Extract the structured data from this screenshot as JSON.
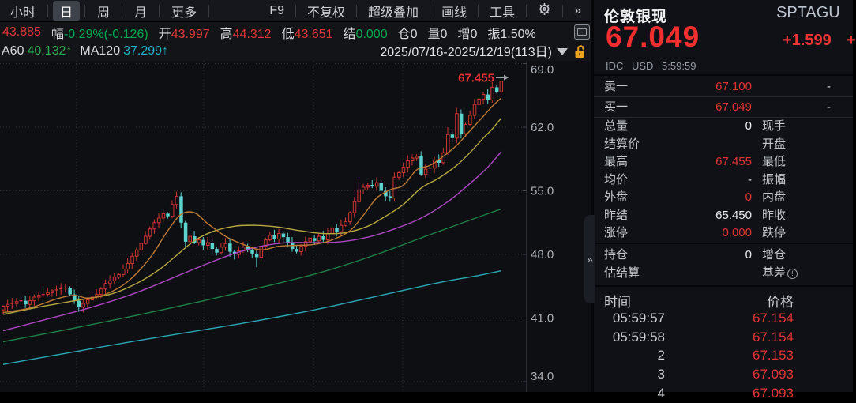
{
  "toolbar": {
    "tabs": [
      {
        "label": "小时",
        "selected": false
      },
      {
        "label": "日",
        "selected": true
      },
      {
        "label": "周",
        "selected": false
      },
      {
        "label": "月",
        "selected": false
      },
      {
        "label": "更多",
        "selected": false
      }
    ],
    "right_items": [
      "F9",
      "不复权",
      "超级叠加",
      "画线",
      "工具"
    ],
    "gear_icon": "gear",
    "overflow_icon": "»"
  },
  "quote_bar": {
    "items": [
      {
        "label": "",
        "value": "43.885",
        "color": "red"
      },
      {
        "label": "幅",
        "value": "-0.29%(-0.126)",
        "color": "green"
      },
      {
        "label": "开",
        "value": "43.997",
        "color": "red"
      },
      {
        "label": "高",
        "value": "44.312",
        "color": "red"
      },
      {
        "label": "低",
        "value": "43.651",
        "color": "red"
      },
      {
        "label": "结",
        "value": "0.000",
        "color": "green"
      },
      {
        "label": "仓",
        "value": "0",
        "color": "white"
      },
      {
        "label": "量",
        "value": "0",
        "color": "white"
      },
      {
        "label": "增",
        "value": "0",
        "color": "white"
      },
      {
        "label": "振",
        "value": "1.50%",
        "color": "white"
      }
    ]
  },
  "ma_bar": {
    "legend": [
      {
        "label": "A60",
        "value": "40.132↑",
        "color": "#2eac4e"
      },
      {
        "label": "MA120",
        "value": "37.299↑",
        "color": "#1fb3c9"
      }
    ],
    "date_range": "2025/07/16-2025/12/19(113日)"
  },
  "chart_data": {
    "type": "candlestick",
    "symbol": "伦敦银现",
    "period": "日",
    "bars_count": 113,
    "date_range": "2025/07/16-2025/12/19",
    "y_ticks": [
      69.0,
      62.0,
      55.0,
      48.0,
      41.0,
      34.0
    ],
    "y_range": [
      33.5,
      70.2
    ],
    "grid_vx": [
      97,
      258,
      397,
      510
    ],
    "annotation": {
      "text": "67.455",
      "value": 67.455
    },
    "first_open": 41.9,
    "closes": [
      42.3,
      42.5,
      42.6,
      42.8,
      42.9,
      42.5,
      42.9,
      43.3,
      43.5,
      43.6,
      43.8,
      44.0,
      44.1,
      44.2,
      44.3,
      43.6,
      42.9,
      42.2,
      42.6,
      43.0,
      43.3,
      43.6,
      44.2,
      44.8,
      45.1,
      45.5,
      45.8,
      46.4,
      47.0,
      47.8,
      48.5,
      49.2,
      50.0,
      50.8,
      51.5,
      52.0,
      52.5,
      52.2,
      53.5,
      54.4,
      51.5,
      49.4,
      50.0,
      49.3,
      49.6,
      49.0,
      49.3,
      48.6,
      48.2,
      48.8,
      49.2,
      48.3,
      48.0,
      48.4,
      48.8,
      48.5,
      48.1,
      47.7,
      48.9,
      49.6,
      50.1,
      49.7,
      50.3,
      49.9,
      49.3,
      48.6,
      48.3,
      48.9,
      49.4,
      49.8,
      49.5,
      50.0,
      49.6,
      50.3,
      50.9,
      50.5,
      51.2,
      51.6,
      52.6,
      53.8,
      55.1,
      55.4,
      55.6,
      55.5,
      55.9,
      55.0,
      54.4,
      54.2,
      56.5,
      57.0,
      57.6,
      58.3,
      58.6,
      58.8,
      56.8,
      57.4,
      57.5,
      58.4,
      58.1,
      59.2,
      61.2,
      60.8,
      63.5,
      61.3,
      62.3,
      63.3,
      64.5,
      65.1,
      65.6,
      65.0,
      66.4,
      65.9,
      67.049
    ],
    "wick_overrides": {
      "39": {
        "high": 54.9
      },
      "57": {
        "low": 46.6
      },
      "80": {
        "high": 56.3
      },
      "88": {
        "low": 53.8
      },
      "100": {
        "high": 62.0
      },
      "112": {
        "high": 67.455
      }
    },
    "colors": {
      "up": "#d23531",
      "down": "#5bd4d0",
      "grid": "#3b3f46",
      "axis": "#41454c",
      "tick_text": "#aab0b6",
      "annotation": "#e83030"
    },
    "ma_lines": [
      {
        "name": "ma120",
        "color": "#2aa8b4",
        "points": [
          [
            0,
            35.9
          ],
          [
            15,
            37.2
          ],
          [
            30,
            38.5
          ],
          [
            45,
            39.7
          ],
          [
            56,
            40.6
          ],
          [
            70,
            41.9
          ],
          [
            85,
            43.5
          ],
          [
            98,
            44.9
          ],
          [
            106,
            45.6
          ],
          [
            112,
            46.2
          ]
        ]
      },
      {
        "name": "ma60",
        "color": "#1f8048",
        "points": [
          [
            0,
            38.4
          ],
          [
            15,
            39.8
          ],
          [
            30,
            41.3
          ],
          [
            45,
            42.9
          ],
          [
            60,
            44.6
          ],
          [
            72,
            46.1
          ],
          [
            84,
            48.0
          ],
          [
            95,
            50.0
          ],
          [
            104,
            51.6
          ],
          [
            112,
            53.0
          ]
        ]
      },
      {
        "name": "ma40",
        "color": "#ab46c0",
        "points": [
          [
            0,
            39.6
          ],
          [
            10,
            40.9
          ],
          [
            20,
            42.2
          ],
          [
            30,
            43.8
          ],
          [
            40,
            45.8
          ],
          [
            46,
            47.0
          ],
          [
            52,
            48.1
          ],
          [
            58,
            48.9
          ],
          [
            64,
            49.3
          ],
          [
            70,
            49.3
          ],
          [
            76,
            49.4
          ],
          [
            82,
            49.9
          ],
          [
            88,
            50.8
          ],
          [
            94,
            52.0
          ],
          [
            100,
            53.8
          ],
          [
            105,
            55.8
          ],
          [
            109,
            57.6
          ],
          [
            112,
            59.3
          ]
        ]
      },
      {
        "name": "ma20",
        "color": "#b8a83e",
        "points": [
          [
            0,
            41.4
          ],
          [
            8,
            42.2
          ],
          [
            16,
            42.9
          ],
          [
            24,
            43.6
          ],
          [
            30,
            44.8
          ],
          [
            35,
            46.3
          ],
          [
            39,
            47.9
          ],
          [
            43,
            49.5
          ],
          [
            47,
            50.5
          ],
          [
            52,
            51.1
          ],
          [
            57,
            51.2
          ],
          [
            62,
            51.0
          ],
          [
            67,
            50.6
          ],
          [
            72,
            50.3
          ],
          [
            77,
            50.4
          ],
          [
            82,
            51.1
          ],
          [
            86,
            52.2
          ],
          [
            90,
            53.5
          ],
          [
            94,
            55.3
          ],
          [
            98,
            56.4
          ],
          [
            102,
            57.8
          ],
          [
            105,
            59.2
          ],
          [
            108,
            60.8
          ],
          [
            110,
            61.8
          ],
          [
            112,
            63.0
          ]
        ]
      },
      {
        "name": "ma10",
        "color": "#bf7a32",
        "points": [
          [
            0,
            41.6
          ],
          [
            6,
            42.1
          ],
          [
            12,
            43.1
          ],
          [
            16,
            43.5
          ],
          [
            19,
            43.2
          ],
          [
            23,
            43.6
          ],
          [
            28,
            45.0
          ],
          [
            33,
            47.6
          ],
          [
            37,
            50.6
          ],
          [
            40,
            52.4
          ],
          [
            43,
            52.6
          ],
          [
            46,
            51.4
          ],
          [
            50,
            50.0
          ],
          [
            54,
            49.1
          ],
          [
            58,
            48.5
          ],
          [
            62,
            48.9
          ],
          [
            66,
            49.0
          ],
          [
            70,
            49.1
          ],
          [
            74,
            49.6
          ],
          [
            78,
            50.6
          ],
          [
            81,
            52.3
          ],
          [
            84,
            54.2
          ],
          [
            87,
            55.1
          ],
          [
            90,
            55.6
          ],
          [
            93,
            57.3
          ],
          [
            96,
            57.8
          ],
          [
            99,
            58.8
          ],
          [
            102,
            60.0
          ],
          [
            105,
            61.6
          ],
          [
            108,
            63.2
          ],
          [
            110,
            64.3
          ],
          [
            112,
            65.2
          ]
        ]
      }
    ]
  },
  "panel": {
    "name": "伦敦银现",
    "code": "SPTAGU",
    "last": "67.049",
    "change": "+1.599",
    "change_fragment": "+",
    "meta": "IDC USD 5:59:59",
    "book": [
      {
        "label": "卖一",
        "value": "67.100",
        "extra": "-"
      },
      {
        "label": "买一",
        "value": "67.049",
        "extra": "-"
      }
    ],
    "stats": [
      {
        "l": "总量",
        "v": "0",
        "vc": "white",
        "r": "现手"
      },
      {
        "l": "结算价",
        "v": "",
        "vc": "white",
        "r": "开盘"
      },
      {
        "l": "最高",
        "v": "67.455",
        "vc": "red",
        "r": "最低"
      },
      {
        "l": "均价",
        "v": "-",
        "vc": "white",
        "r": "振幅"
      },
      {
        "l": "外盘",
        "v": "0",
        "vc": "red",
        "r": "内盘"
      },
      {
        "l": "昨结",
        "v": "65.450",
        "vc": "white",
        "r": "昨收"
      },
      {
        "l": "涨停",
        "v": "0.000",
        "vc": "red",
        "r": "跌停"
      }
    ],
    "position_rows": [
      {
        "l": "持仓",
        "v": "0",
        "vc": "white",
        "r": "增仓",
        "r_icon": ""
      },
      {
        "l": "估结算",
        "v": "",
        "vc": "white",
        "r": "基差",
        "r_icon": "info"
      }
    ],
    "ticks": {
      "time_header": "时间",
      "price_header": "价格",
      "rows": [
        [
          "05:59:57",
          "67.154"
        ],
        [
          "05:59:58",
          "67.154"
        ],
        [
          "2",
          "67.153"
        ],
        [
          "3",
          "67.093"
        ],
        [
          "4",
          "67.093"
        ]
      ]
    },
    "handle_icon": "»"
  }
}
